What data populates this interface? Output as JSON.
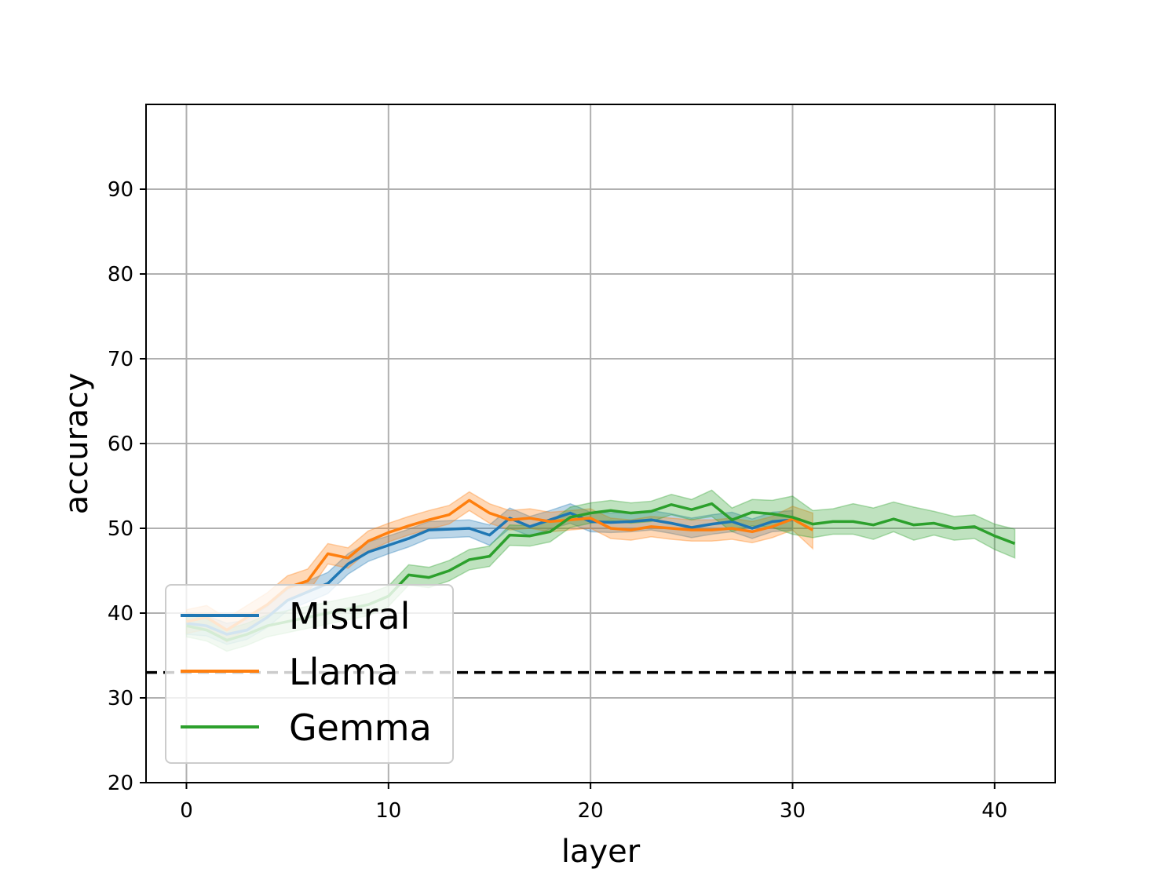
{
  "chart_data": {
    "type": "line",
    "title": "",
    "xlabel": "layer",
    "ylabel": "accuracy",
    "xlim": [
      -2,
      43
    ],
    "ylim": [
      20,
      100
    ],
    "xticks": [
      0,
      10,
      20,
      30,
      40
    ],
    "yticks": [
      20,
      30,
      40,
      50,
      60,
      70,
      80,
      90
    ],
    "grid": true,
    "legend_position": "lower-left",
    "baseline": {
      "y": 33,
      "style": "dashed",
      "color": "#000000"
    },
    "series": [
      {
        "name": "Mistral",
        "color": "#1f77b4",
        "x": [
          0,
          1,
          2,
          3,
          4,
          5,
          6,
          7,
          8,
          9,
          10,
          11,
          12,
          13,
          14,
          15,
          16,
          17,
          18,
          19,
          20,
          21,
          22,
          23,
          24,
          25,
          26,
          27,
          28,
          29,
          30
        ],
        "y": [
          38.8,
          38.5,
          37.5,
          38.0,
          39.5,
          41.5,
          42.5,
          43.5,
          45.8,
          47.2,
          48.0,
          48.8,
          49.8,
          49.9,
          50.0,
          49.2,
          51.2,
          50.2,
          51.0,
          51.8,
          50.8,
          50.7,
          50.8,
          51.0,
          50.6,
          50.1,
          50.5,
          50.8,
          50.0,
          50.8,
          51.0
        ],
        "lower": [
          37.5,
          37.3,
          36.3,
          36.9,
          38.3,
          40.3,
          41.3,
          42.3,
          44.6,
          46.1,
          47.0,
          47.8,
          48.8,
          48.9,
          49.0,
          48.0,
          50.0,
          49.1,
          49.9,
          50.6,
          49.6,
          49.5,
          49.6,
          49.8,
          49.4,
          48.9,
          49.3,
          49.6,
          48.8,
          49.6,
          49.8
        ],
        "upper": [
          40.0,
          39.7,
          38.8,
          39.2,
          40.8,
          42.8,
          43.8,
          44.8,
          47.0,
          48.4,
          49.1,
          49.9,
          50.8,
          50.9,
          51.0,
          50.4,
          52.4,
          51.4,
          52.1,
          52.9,
          51.9,
          51.8,
          51.9,
          52.1,
          51.7,
          51.2,
          51.6,
          51.9,
          51.1,
          51.9,
          52.1
        ]
      },
      {
        "name": "Llama",
        "color": "#ff7f0e",
        "x": [
          0,
          1,
          2,
          3,
          4,
          5,
          6,
          7,
          8,
          9,
          10,
          11,
          12,
          13,
          14,
          15,
          16,
          17,
          18,
          19,
          20,
          21,
          22,
          23,
          24,
          25,
          26,
          27,
          28,
          29,
          30,
          31
        ],
        "y": [
          39.0,
          39.5,
          38.0,
          39.5,
          41.0,
          43.0,
          43.8,
          47.0,
          46.5,
          48.5,
          49.5,
          50.3,
          51.0,
          51.6,
          53.3,
          51.8,
          51.0,
          51.2,
          50.8,
          51.0,
          51.2,
          50.0,
          49.8,
          50.2,
          50.0,
          49.8,
          49.8,
          50.0,
          49.6,
          50.2,
          51.1,
          49.8
        ],
        "lower": [
          37.6,
          38.1,
          36.6,
          38.1,
          39.6,
          41.6,
          42.4,
          45.8,
          45.3,
          47.3,
          48.4,
          49.2,
          49.9,
          50.5,
          52.1,
          50.6,
          49.8,
          50.0,
          49.6,
          49.8,
          50.0,
          48.8,
          48.6,
          49.0,
          48.7,
          48.5,
          48.5,
          48.7,
          48.3,
          48.9,
          49.8,
          47.6
        ],
        "upper": [
          40.4,
          40.9,
          39.4,
          40.9,
          42.4,
          44.4,
          45.2,
          48.2,
          47.7,
          49.7,
          50.6,
          51.4,
          52.1,
          52.7,
          54.3,
          52.9,
          52.1,
          52.3,
          51.9,
          52.1,
          52.3,
          51.2,
          51.0,
          51.4,
          51.2,
          51.0,
          51.0,
          51.2,
          50.8,
          51.4,
          52.6,
          51.8
        ]
      },
      {
        "name": "Gemma",
        "color": "#2ca02c",
        "x": [
          0,
          1,
          2,
          3,
          4,
          5,
          6,
          7,
          8,
          9,
          10,
          11,
          12,
          13,
          14,
          15,
          16,
          17,
          18,
          19,
          20,
          21,
          22,
          23,
          24,
          25,
          26,
          27,
          28,
          29,
          30,
          31,
          32,
          33,
          34,
          35,
          36,
          37,
          38,
          39,
          40,
          41
        ],
        "y": [
          38.5,
          38.0,
          36.8,
          37.5,
          38.5,
          39.0,
          39.5,
          40.0,
          40.5,
          41.0,
          42.0,
          44.5,
          44.2,
          45.0,
          46.3,
          46.7,
          49.2,
          49.1,
          49.6,
          51.3,
          51.8,
          52.1,
          51.8,
          52.0,
          52.8,
          52.2,
          52.9,
          51.0,
          51.9,
          51.7,
          51.3,
          50.5,
          50.8,
          50.8,
          50.4,
          51.1,
          50.4,
          50.6,
          50.0,
          50.2,
          49.1,
          48.2
        ],
        "lower": [
          37.2,
          36.7,
          35.5,
          36.2,
          37.2,
          37.7,
          38.2,
          38.7,
          39.2,
          39.7,
          40.8,
          43.3,
          43.0,
          43.8,
          45.1,
          45.5,
          48.0,
          47.9,
          48.4,
          50.1,
          50.6,
          50.9,
          50.6,
          50.8,
          51.6,
          51.0,
          51.4,
          49.6,
          50.3,
          50.1,
          49.3,
          48.9,
          49.3,
          49.3,
          48.7,
          49.6,
          48.6,
          49.2,
          48.6,
          48.8,
          47.5,
          46.5
        ],
        "upper": [
          39.8,
          39.3,
          38.1,
          38.8,
          39.8,
          40.3,
          40.8,
          41.3,
          41.8,
          42.3,
          43.2,
          45.7,
          45.4,
          46.2,
          47.5,
          47.9,
          50.4,
          50.3,
          50.8,
          52.5,
          53.0,
          53.3,
          53.0,
          53.2,
          54.0,
          53.4,
          54.5,
          52.4,
          53.4,
          53.3,
          53.8,
          52.1,
          52.3,
          52.9,
          52.4,
          53.1,
          52.5,
          52.0,
          51.4,
          51.6,
          50.5,
          49.9
        ]
      }
    ]
  }
}
